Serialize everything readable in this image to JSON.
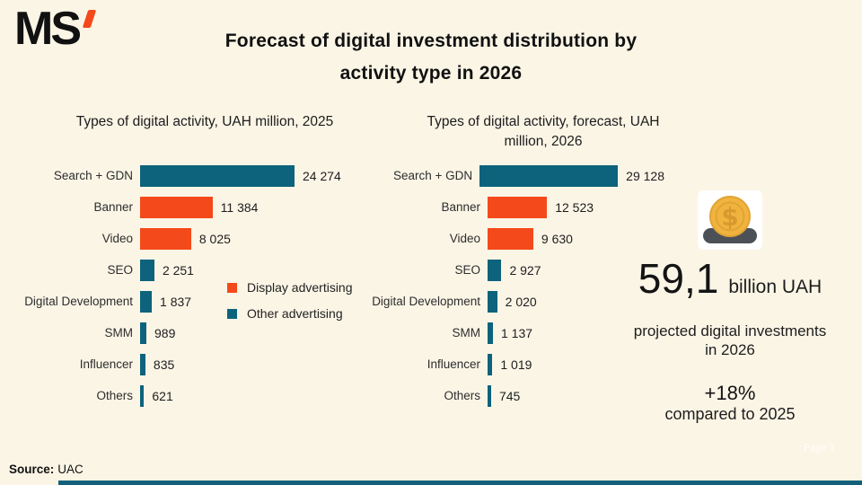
{
  "page": {
    "background": "#FBF5E6",
    "logo_text": "MS",
    "title_line1": "Forecast of digital investment distribution by",
    "title_line2": "activity type in 2026",
    "page_marker": "Page 1",
    "source_label": "Source:",
    "source_value": "UAC"
  },
  "colors": {
    "display": "#F4491A",
    "other": "#0D627C",
    "footer_bar": "#14607A",
    "coin_gold": "#F0B43E",
    "coin_ring": "#E2A336",
    "coin_dollar": "#D9992E",
    "tray_gray": "#4C5157",
    "text": "#1A1A1A"
  },
  "legend": {
    "items": [
      {
        "label": "Display advertising",
        "color_key": "display"
      },
      {
        "label": "Other advertising",
        "color_key": "other"
      }
    ]
  },
  "chart_data": [
    {
      "type": "bar",
      "orientation": "horizontal",
      "title": "Types of digital activity, UAH million, 2025",
      "categories": [
        "Search + GDN",
        "Banner",
        "Video",
        "SEO",
        "Digital Development",
        "SMM",
        "Influencer",
        "Others"
      ],
      "values": [
        24274,
        11384,
        8025,
        2251,
        1837,
        989,
        835,
        621
      ],
      "value_labels": [
        "24 274",
        "11 384",
        "8 025",
        "2 251",
        "1 837",
        "989",
        "835",
        "621"
      ],
      "series_keys": [
        "other",
        "display",
        "display",
        "other",
        "other",
        "other",
        "other",
        "other"
      ],
      "xlim": [
        0,
        24274
      ],
      "grid": false,
      "unit": "UAH million",
      "legend_position": "right-of-bars"
    },
    {
      "type": "bar",
      "orientation": "horizontal",
      "title": "Types of digital activity, forecast, UAH million, 2026",
      "categories": [
        "Search + GDN",
        "Banner",
        "Video",
        "SEO",
        "Digital Development",
        "SMM",
        "Influencer",
        "Others"
      ],
      "values": [
        29128,
        12523,
        9630,
        2927,
        2020,
        1137,
        1019,
        745
      ],
      "value_labels": [
        "29 128",
        "12 523",
        "9 630",
        "2 927",
        "2 020",
        "1 137",
        "1 019",
        "745"
      ],
      "series_keys": [
        "other",
        "display",
        "display",
        "other",
        "other",
        "other",
        "other",
        "other"
      ],
      "xlim": [
        0,
        29128
      ],
      "grid": false,
      "unit": "UAH million"
    }
  ],
  "highlight": {
    "value": "59,1",
    "unit": "billion UAH",
    "caption_line1": "projected digital investments",
    "caption_line2": "in 2026",
    "growth": "+18%",
    "growth_caption": "compared to 2025"
  }
}
